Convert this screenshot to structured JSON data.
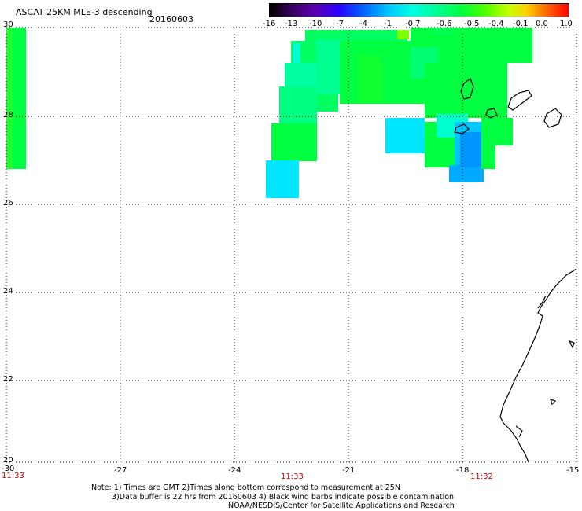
{
  "header": {
    "title": "ASCAT 25KM MLE-3 descending",
    "date": "20160603"
  },
  "colorbar": {
    "ticks": [
      "-16",
      "-13",
      "-10",
      "-7",
      "-4",
      "-1",
      "-0.7",
      "-0.6",
      "-0.5",
      "-0.4",
      "-0.1",
      "0.0",
      "1.0"
    ],
    "colors": [
      "#000000",
      "#3d0066",
      "#5a00b0",
      "#2d00ff",
      "#0060ff",
      "#00c8ff",
      "#00ffe0",
      "#00ff90",
      "#00ff40",
      "#50ff00",
      "#c8ff00",
      "#ffd000",
      "#ff7000",
      "#ff0000"
    ]
  },
  "map": {
    "lat_labels": [
      "30",
      "28",
      "26",
      "24",
      "22",
      "20"
    ],
    "lon_labels": [
      "-30",
      "-27",
      "-24",
      "-21",
      "-18",
      "-15"
    ],
    "times": [
      "11:33",
      "11:33",
      "11:32"
    ],
    "land_color": "#000000",
    "grid_style": "dotted"
  },
  "notes": {
    "line1": "Note: 1) Times are GMT 2)Times along bottom correspond to measurement at 25N",
    "line2": "3)Data buffer is 22 hrs from 20160603 4) Black wind barbs indicate possible contamination",
    "line3": "NOAA/NESDIS/Center for Satellite Applications and Research"
  }
}
